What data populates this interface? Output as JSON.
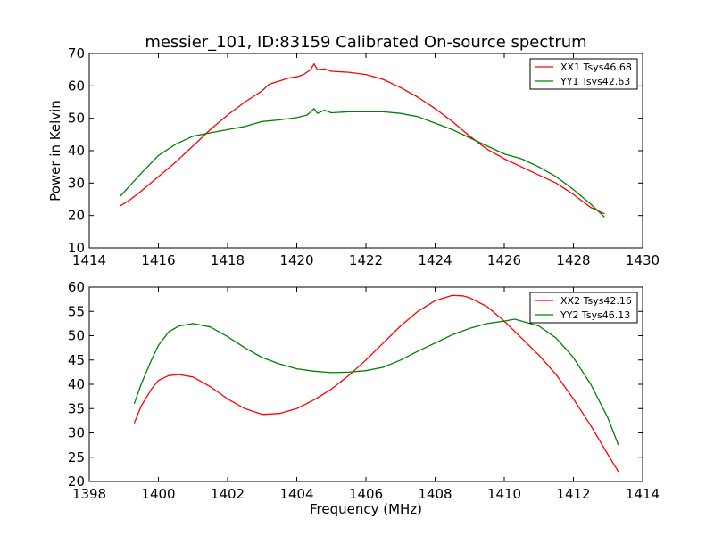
{
  "figure": {
    "title": "messier_101, ID:83159 Calibrated On-source spectrum"
  },
  "chart_data": [
    {
      "type": "line",
      "xlabel": "",
      "ylabel": "Power in Kelvin",
      "xlim": [
        1414,
        1430
      ],
      "ylim": [
        10,
        70
      ],
      "xticks": [
        1414,
        1416,
        1418,
        1420,
        1422,
        1424,
        1426,
        1428,
        1430
      ],
      "yticks": [
        10,
        20,
        30,
        40,
        50,
        60,
        70
      ],
      "legend_position": "top-right",
      "grid": false,
      "series": [
        {
          "name": "XX1 Tsys46.68",
          "color": "#ff0000",
          "x": [
            1414.9,
            1415.2,
            1415.5,
            1416.0,
            1416.5,
            1417.0,
            1417.5,
            1418.0,
            1418.5,
            1419.0,
            1419.2,
            1419.5,
            1419.8,
            1420.0,
            1420.2,
            1420.4,
            1420.5,
            1420.6,
            1420.8,
            1421.0,
            1421.5,
            1422.0,
            1422.5,
            1423.0,
            1423.5,
            1424.0,
            1424.5,
            1425.0,
            1425.5,
            1426.0,
            1426.5,
            1427.0,
            1427.5,
            1428.0,
            1428.5,
            1428.9
          ],
          "y": [
            23,
            25,
            27.5,
            32,
            36.5,
            41.5,
            46.5,
            51,
            55,
            58.5,
            60.5,
            61.5,
            62.5,
            62.8,
            63.5,
            65,
            66.8,
            65,
            65.2,
            64.5,
            64.2,
            63.5,
            62,
            59.5,
            56.5,
            53,
            49,
            44.5,
            40.5,
            37.5,
            35,
            32.5,
            30,
            26.5,
            22.5,
            20.5
          ]
        },
        {
          "name": "YY1 Tsys42.63",
          "color": "#008000",
          "x": [
            1414.9,
            1415.2,
            1415.5,
            1416.0,
            1416.5,
            1417.0,
            1417.5,
            1418.0,
            1418.5,
            1419.0,
            1419.5,
            1420.0,
            1420.3,
            1420.5,
            1420.6,
            1420.8,
            1421.0,
            1421.5,
            1422.0,
            1422.5,
            1423.0,
            1423.5,
            1424.0,
            1424.5,
            1425.0,
            1425.5,
            1426.0,
            1426.5,
            1427.0,
            1427.5,
            1428.0,
            1428.5,
            1428.9
          ],
          "y": [
            26,
            29.5,
            33,
            38.5,
            42,
            44.5,
            45.5,
            46.5,
            47.5,
            49,
            49.5,
            50.2,
            51,
            53,
            51.5,
            52.5,
            51.7,
            52,
            52,
            52,
            51.5,
            50.5,
            48.5,
            46.5,
            44,
            41.5,
            39,
            37.5,
            35,
            32,
            28,
            23.5,
            19.5
          ]
        }
      ]
    },
    {
      "type": "line",
      "xlabel": "Frequency (MHz)",
      "ylabel": "",
      "xlim": [
        1398,
        1414
      ],
      "ylim": [
        20,
        60
      ],
      "xticks": [
        1398,
        1400,
        1402,
        1404,
        1406,
        1408,
        1410,
        1412,
        1414
      ],
      "yticks": [
        20,
        25,
        30,
        35,
        40,
        45,
        50,
        55,
        60
      ],
      "legend_position": "top-right",
      "grid": false,
      "series": [
        {
          "name": "XX2 Tsys42.16",
          "color": "#ff0000",
          "x": [
            1399.3,
            1399.5,
            1399.8,
            1400.0,
            1400.3,
            1400.6,
            1401.0,
            1401.5,
            1402.0,
            1402.5,
            1403.0,
            1403.5,
            1404.0,
            1404.5,
            1405.0,
            1405.5,
            1406.0,
            1406.5,
            1407.0,
            1407.5,
            1408.0,
            1408.5,
            1408.8,
            1409.0,
            1409.5,
            1410.0,
            1410.5,
            1411.0,
            1411.5,
            1412.0,
            1412.5,
            1413.0,
            1413.3
          ],
          "y": [
            32,
            35.5,
            39,
            40.8,
            41.8,
            42,
            41.5,
            39.5,
            37,
            35,
            33.8,
            34,
            35,
            36.8,
            39,
            41.8,
            45,
            48.5,
            52,
            55,
            57.2,
            58.3,
            58.2,
            57.8,
            56,
            53,
            49.5,
            46,
            42,
            37,
            31.5,
            25.5,
            22
          ]
        },
        {
          "name": "YY2 Tsys46.13",
          "color": "#008000",
          "x": [
            1399.3,
            1399.5,
            1399.8,
            1400.0,
            1400.3,
            1400.6,
            1401.0,
            1401.5,
            1402.0,
            1402.5,
            1403.0,
            1403.5,
            1404.0,
            1404.5,
            1405.0,
            1405.5,
            1406.0,
            1406.5,
            1407.0,
            1407.5,
            1408.0,
            1408.5,
            1409.0,
            1409.5,
            1410.0,
            1410.3,
            1410.5,
            1411.0,
            1411.5,
            1412.0,
            1412.5,
            1413.0,
            1413.3
          ],
          "y": [
            36,
            40,
            45,
            48,
            50.8,
            52,
            52.5,
            51.8,
            49.8,
            47.5,
            45.5,
            44.2,
            43.2,
            42.7,
            42.4,
            42.5,
            42.8,
            43.5,
            45,
            46.8,
            48.5,
            50.2,
            51.5,
            52.5,
            53,
            53.4,
            53,
            52,
            49.5,
            45.5,
            40,
            33,
            27.5
          ]
        }
      ]
    }
  ]
}
